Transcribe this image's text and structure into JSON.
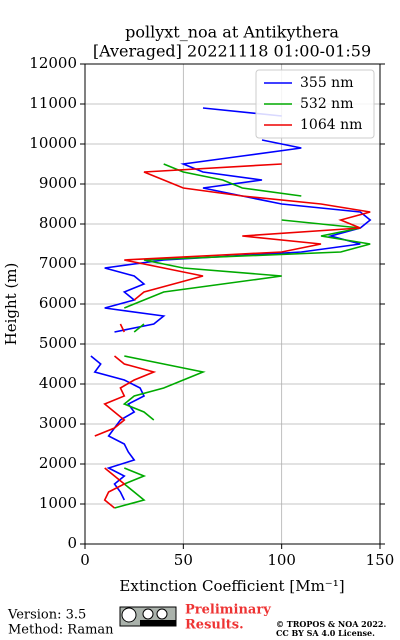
{
  "chart_data": {
    "type": "line",
    "orientation": "profile",
    "title": [
      "pollyxt_noa at Antikythera",
      "[Averaged] 20221118 01:00-01:59"
    ],
    "xlabel": "Extinction Coefficient [Mm⁻¹]",
    "ylabel": "Height (m)",
    "xlim": [
      0,
      150
    ],
    "xticks": [
      0,
      50,
      100,
      150
    ],
    "ylim": [
      0,
      12000
    ],
    "yticks": [
      0,
      1000,
      2000,
      3000,
      4000,
      5000,
      6000,
      7000,
      8000,
      9000,
      10000,
      11000,
      12000
    ],
    "grid": true,
    "legend": "upper right",
    "y": [
      900,
      1100,
      1300,
      1500,
      1700,
      1900,
      2100,
      2300,
      2500,
      2700,
      2900,
      3100,
      3300,
      3500,
      3700,
      3900,
      4100,
      4300,
      4500,
      4700,
      4900,
      5100,
      5300,
      5500,
      5700,
      5900,
      6100,
      6300,
      6500,
      6700,
      6900,
      7100,
      7300,
      7500,
      7700,
      7900,
      8100,
      8300,
      8500,
      8700,
      8900,
      9100,
      9300,
      9500,
      9700,
      9900,
      10100,
      10300,
      10500,
      10700,
      10900
    ],
    "series": [
      {
        "name": "355 nm",
        "color": "#0000ff",
        "values": [
          null,
          20,
          18,
          15,
          20,
          12,
          25,
          22,
          20,
          12,
          15,
          18,
          25,
          22,
          30,
          28,
          20,
          5,
          8,
          3,
          null,
          null,
          15,
          35,
          40,
          10,
          25,
          20,
          30,
          25,
          10,
          40,
          110,
          140,
          125,
          140,
          145,
          140,
          100,
          80,
          60,
          90,
          60,
          50,
          80,
          110,
          90,
          null,
          null,
          100,
          60
        ]
      },
      {
        "name": "532 nm",
        "color": "#00aa00",
        "values": [
          15,
          30,
          25,
          20,
          30,
          20,
          null,
          null,
          null,
          null,
          null,
          35,
          30,
          20,
          25,
          40,
          50,
          60,
          40,
          20,
          null,
          null,
          25,
          30,
          null,
          20,
          30,
          40,
          70,
          100,
          50,
          30,
          130,
          145,
          120,
          140,
          100,
          null,
          null,
          110,
          80,
          70,
          50,
          40,
          null,
          null,
          null,
          null,
          null,
          null,
          null
        ]
      },
      {
        "name": "1064 nm",
        "color": "#ee0000",
        "values": [
          15,
          10,
          12,
          20,
          15,
          10,
          null,
          null,
          null,
          5,
          15,
          20,
          15,
          10,
          20,
          18,
          25,
          35,
          20,
          15,
          null,
          null,
          20,
          18,
          null,
          null,
          25,
          30,
          45,
          60,
          40,
          20,
          100,
          120,
          80,
          140,
          130,
          145,
          120,
          80,
          50,
          40,
          30,
          100,
          null,
          null,
          null,
          null,
          null,
          null,
          null
        ]
      }
    ]
  },
  "footer": {
    "version": "Version: 3.5",
    "method": "Method: Raman",
    "preliminary": [
      "Preliminary",
      "Results."
    ],
    "copyright": [
      "© TROPOS & NOA 2022.",
      "CC BY SA 4.0 License."
    ]
  }
}
